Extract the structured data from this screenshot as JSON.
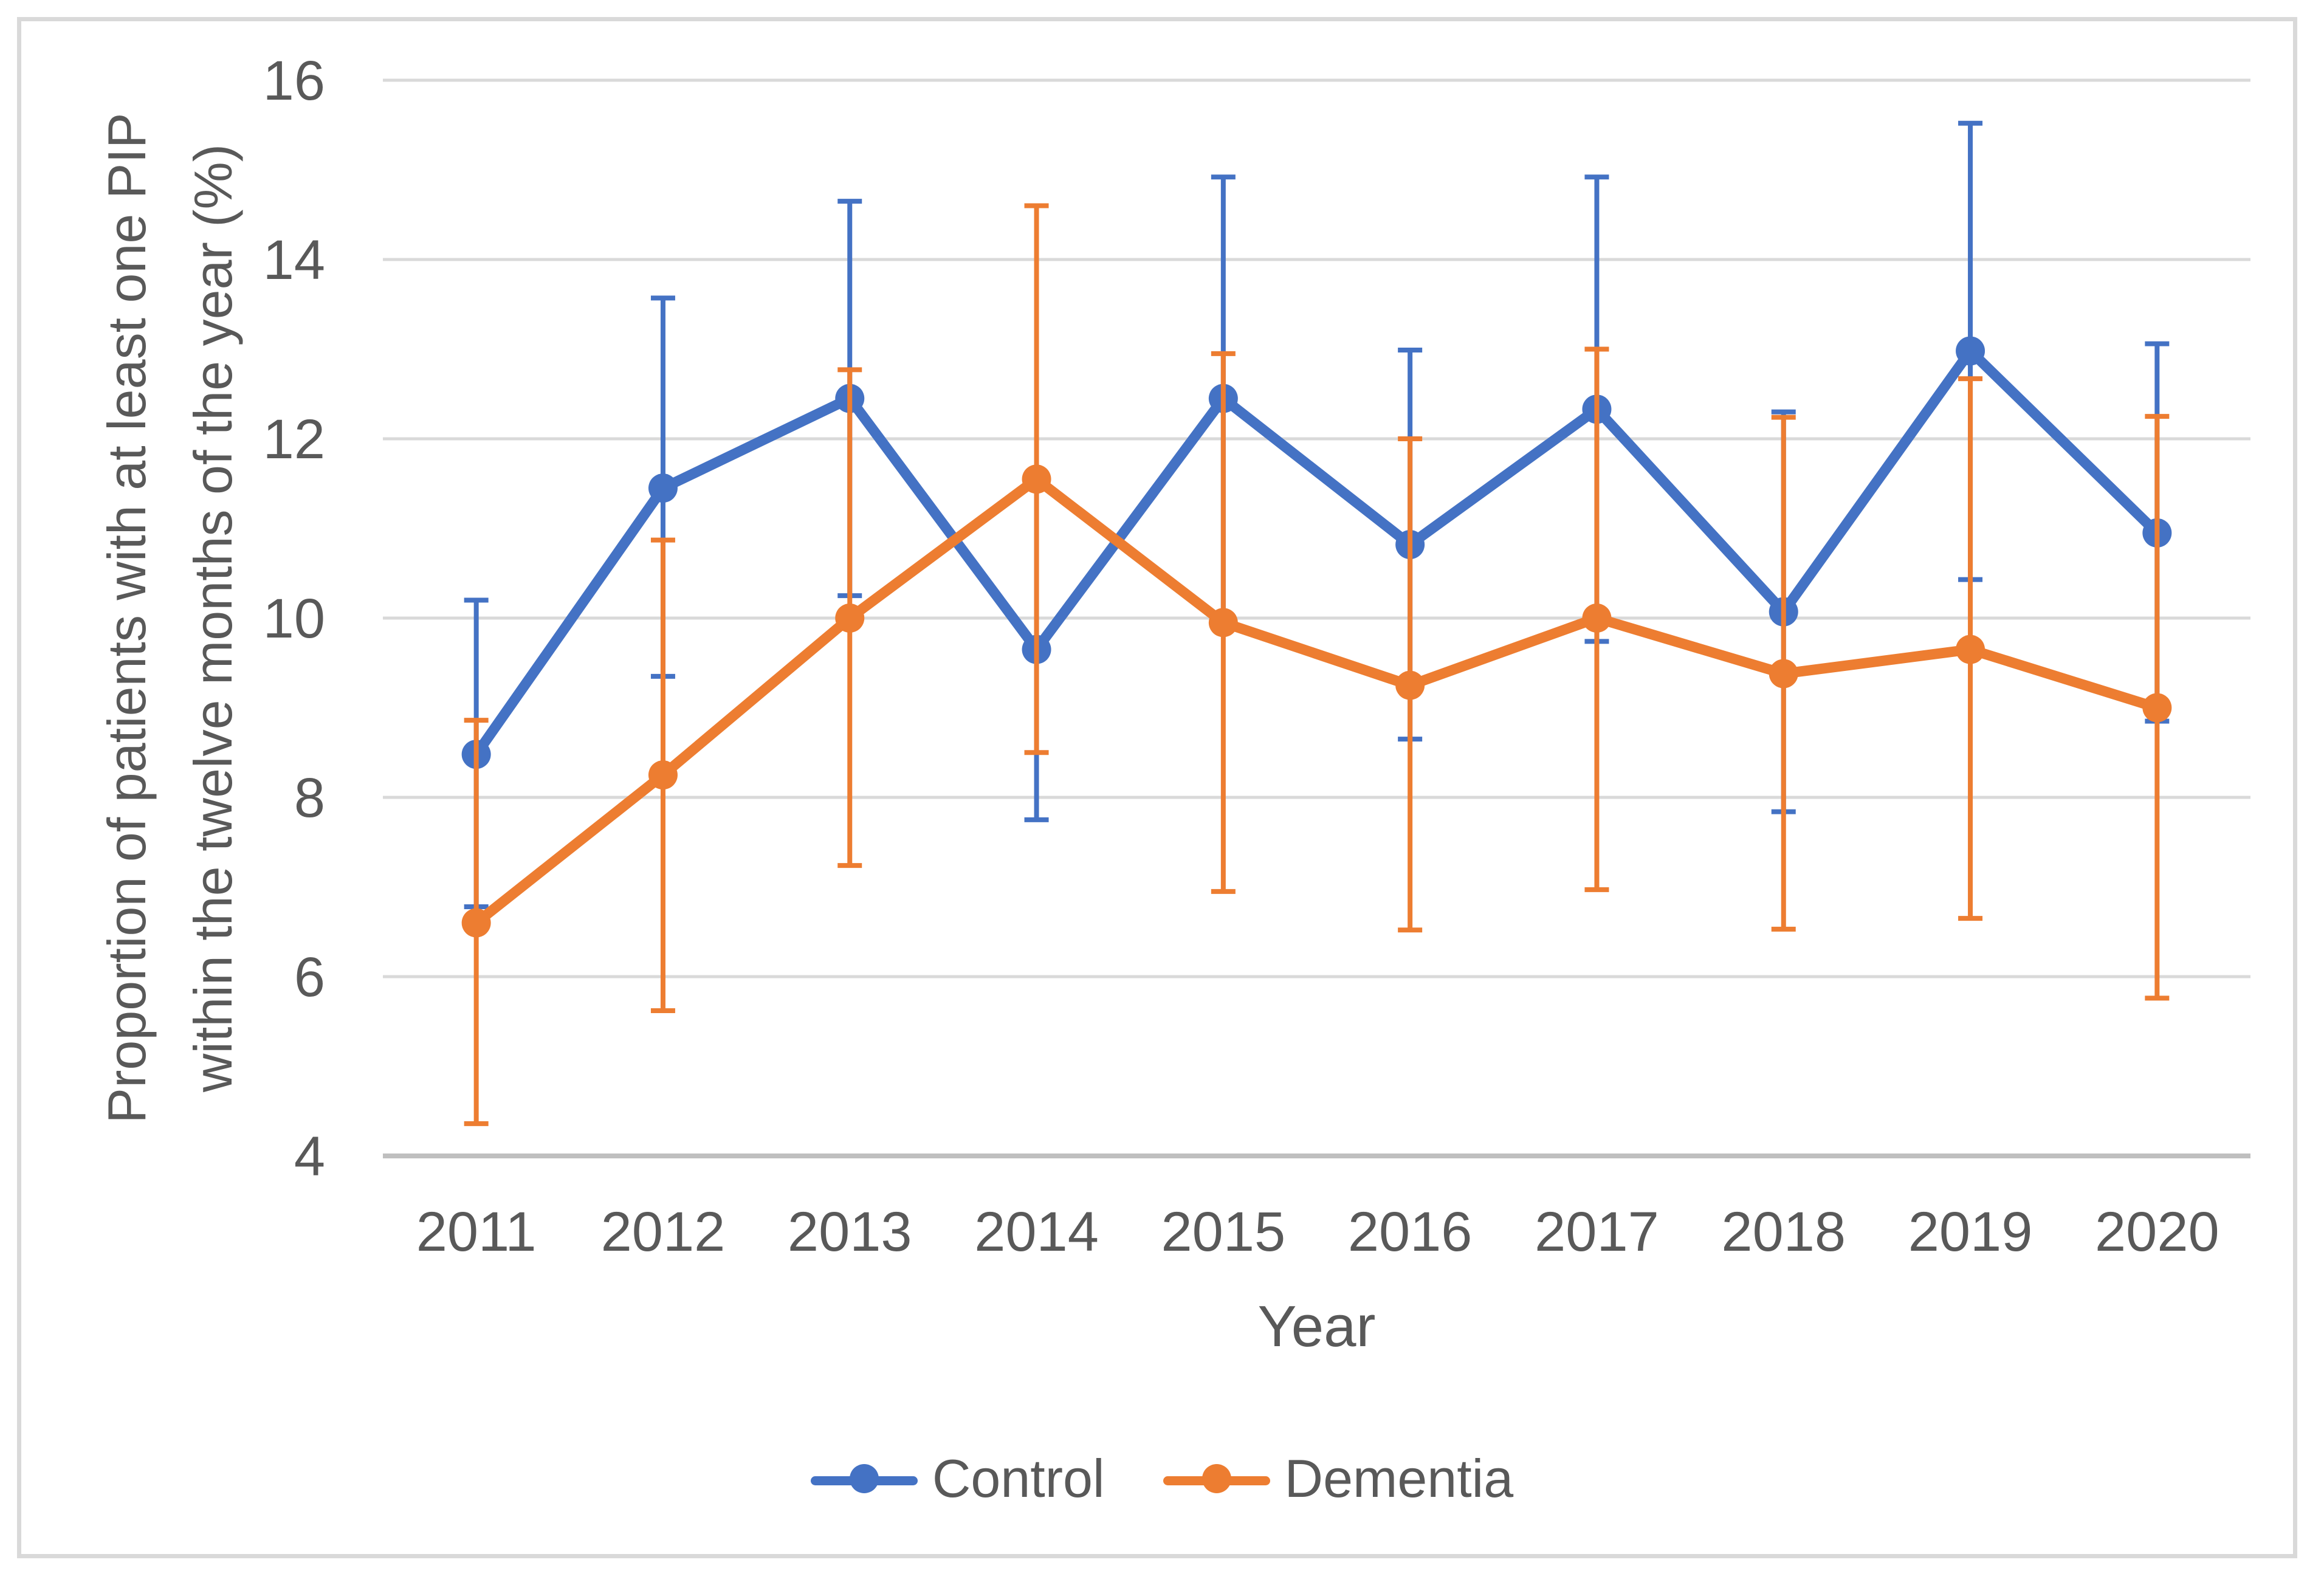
{
  "chart_data": {
    "type": "line",
    "title": "",
    "xlabel": "Year",
    "ylabel_line1": "Proportion of patients with at least one PIP",
    "ylabel_line2": "within the twelve months of the year (%)",
    "ylim": [
      4,
      16
    ],
    "yticks": [
      4,
      6,
      8,
      10,
      12,
      14,
      16
    ],
    "grid": "horizontal",
    "legend_position": "bottom",
    "error_bars": true,
    "categories": [
      "2011",
      "2012",
      "2013",
      "2014",
      "2015",
      "2016",
      "2017",
      "2018",
      "2019",
      "2020"
    ],
    "series": [
      {
        "name": "Control",
        "color": "#4472C4",
        "values": [
          8.48,
          11.45,
          12.45,
          9.65,
          12.45,
          10.82,
          12.33,
          10.07,
          12.98,
          10.95
        ],
        "ci_upper": [
          10.2,
          13.57,
          14.65,
          11.55,
          14.92,
          12.99,
          14.92,
          12.3,
          15.52,
          13.06
        ],
        "ci_lower": [
          6.78,
          9.35,
          10.25,
          7.75,
          9.97,
          8.65,
          9.74,
          7.84,
          10.43,
          8.85
        ]
      },
      {
        "name": "Dementia",
        "color": "#ED7D31",
        "values": [
          6.6,
          8.25,
          10.0,
          11.55,
          9.95,
          9.25,
          10.0,
          9.38,
          9.65,
          9.0
        ],
        "ci_upper": [
          8.86,
          10.87,
          12.77,
          14.6,
          12.95,
          12.0,
          13.0,
          12.24,
          12.67,
          12.25
        ],
        "ci_lower": [
          4.36,
          5.62,
          7.24,
          8.5,
          6.95,
          6.52,
          6.97,
          6.53,
          6.65,
          5.76
        ]
      }
    ],
    "colors": {
      "grid": "#D9D9D9",
      "axis_line": "#BFBFBF",
      "text": "#595959",
      "frame_border": "#D9D9D9",
      "background": "#FFFFFF"
    }
  }
}
